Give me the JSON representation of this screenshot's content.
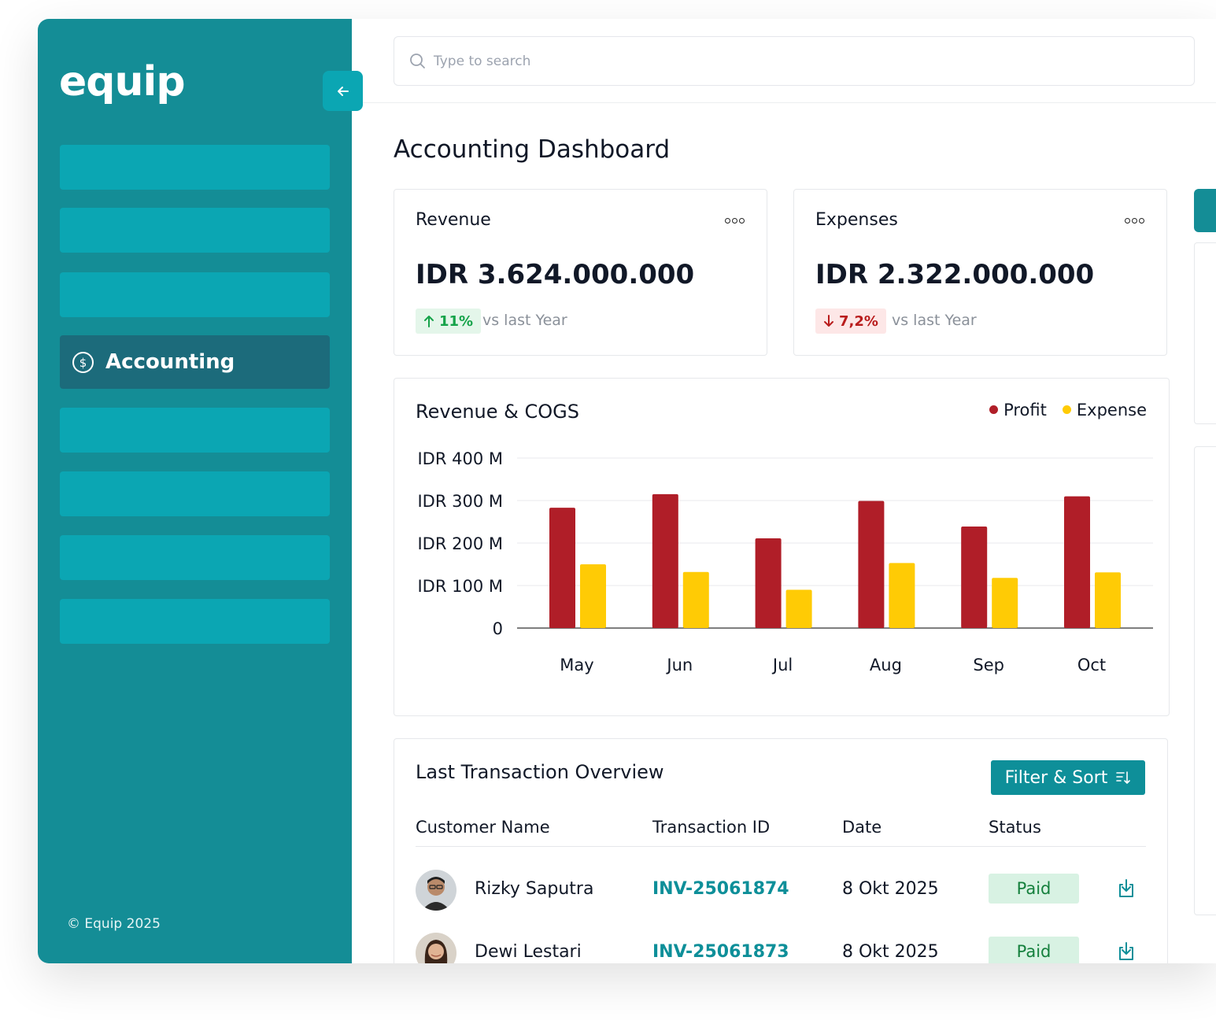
{
  "app": {
    "logo": "equip",
    "copyright": "© Equip 2025"
  },
  "sidebar": {
    "active_label": "Accounting"
  },
  "search": {
    "placeholder": "Type to search"
  },
  "page": {
    "title": "Accounting Dashboard"
  },
  "kpis": [
    {
      "label": "Revenue",
      "value": "IDR 3.624.000.000",
      "change": "11%",
      "direction": "up",
      "comparison": "vs last Year"
    },
    {
      "label": "Expenses",
      "value": "IDR 2.322.000.000",
      "change": "7,2%",
      "direction": "down",
      "comparison": "vs last Year"
    }
  ],
  "chart_data": {
    "type": "bar",
    "title": "Revenue & COGS",
    "categories": [
      "May",
      "Jun",
      "Jul",
      "Aug",
      "Sep",
      "Oct"
    ],
    "series": [
      {
        "name": "Profit",
        "color": "#b01e28",
        "values": [
          283,
          315,
          211,
          299,
          239,
          310
        ]
      },
      {
        "name": "Expense",
        "color": "#ffcb05",
        "values": [
          150,
          132,
          90,
          153,
          118,
          131
        ]
      }
    ],
    "y_ticks": [
      "IDR 400 M",
      "IDR 300 M",
      "IDR 200 M",
      "IDR 100 M",
      "0"
    ],
    "ylim": [
      0,
      400
    ],
    "grid": true,
    "legend": "top-right"
  },
  "transactions": {
    "title": "Last Transaction Overview",
    "filter_label": "Filter & Sort",
    "columns": [
      "Customer Name",
      "Transaction ID",
      "Date",
      "Status"
    ],
    "rows": [
      {
        "name": "Rizky Saputra",
        "id": "INV-25061874",
        "date": "8 Okt 2025",
        "status": "Paid"
      },
      {
        "name": "Dewi Lestari",
        "id": "INV-25061873",
        "date": "8 Okt 2025",
        "status": "Paid"
      }
    ]
  },
  "colors": {
    "sidebar": "#148d96",
    "nav_item": "#0ba6b3",
    "nav_active": "#1c6b7b",
    "accent": "#0e8f99"
  }
}
